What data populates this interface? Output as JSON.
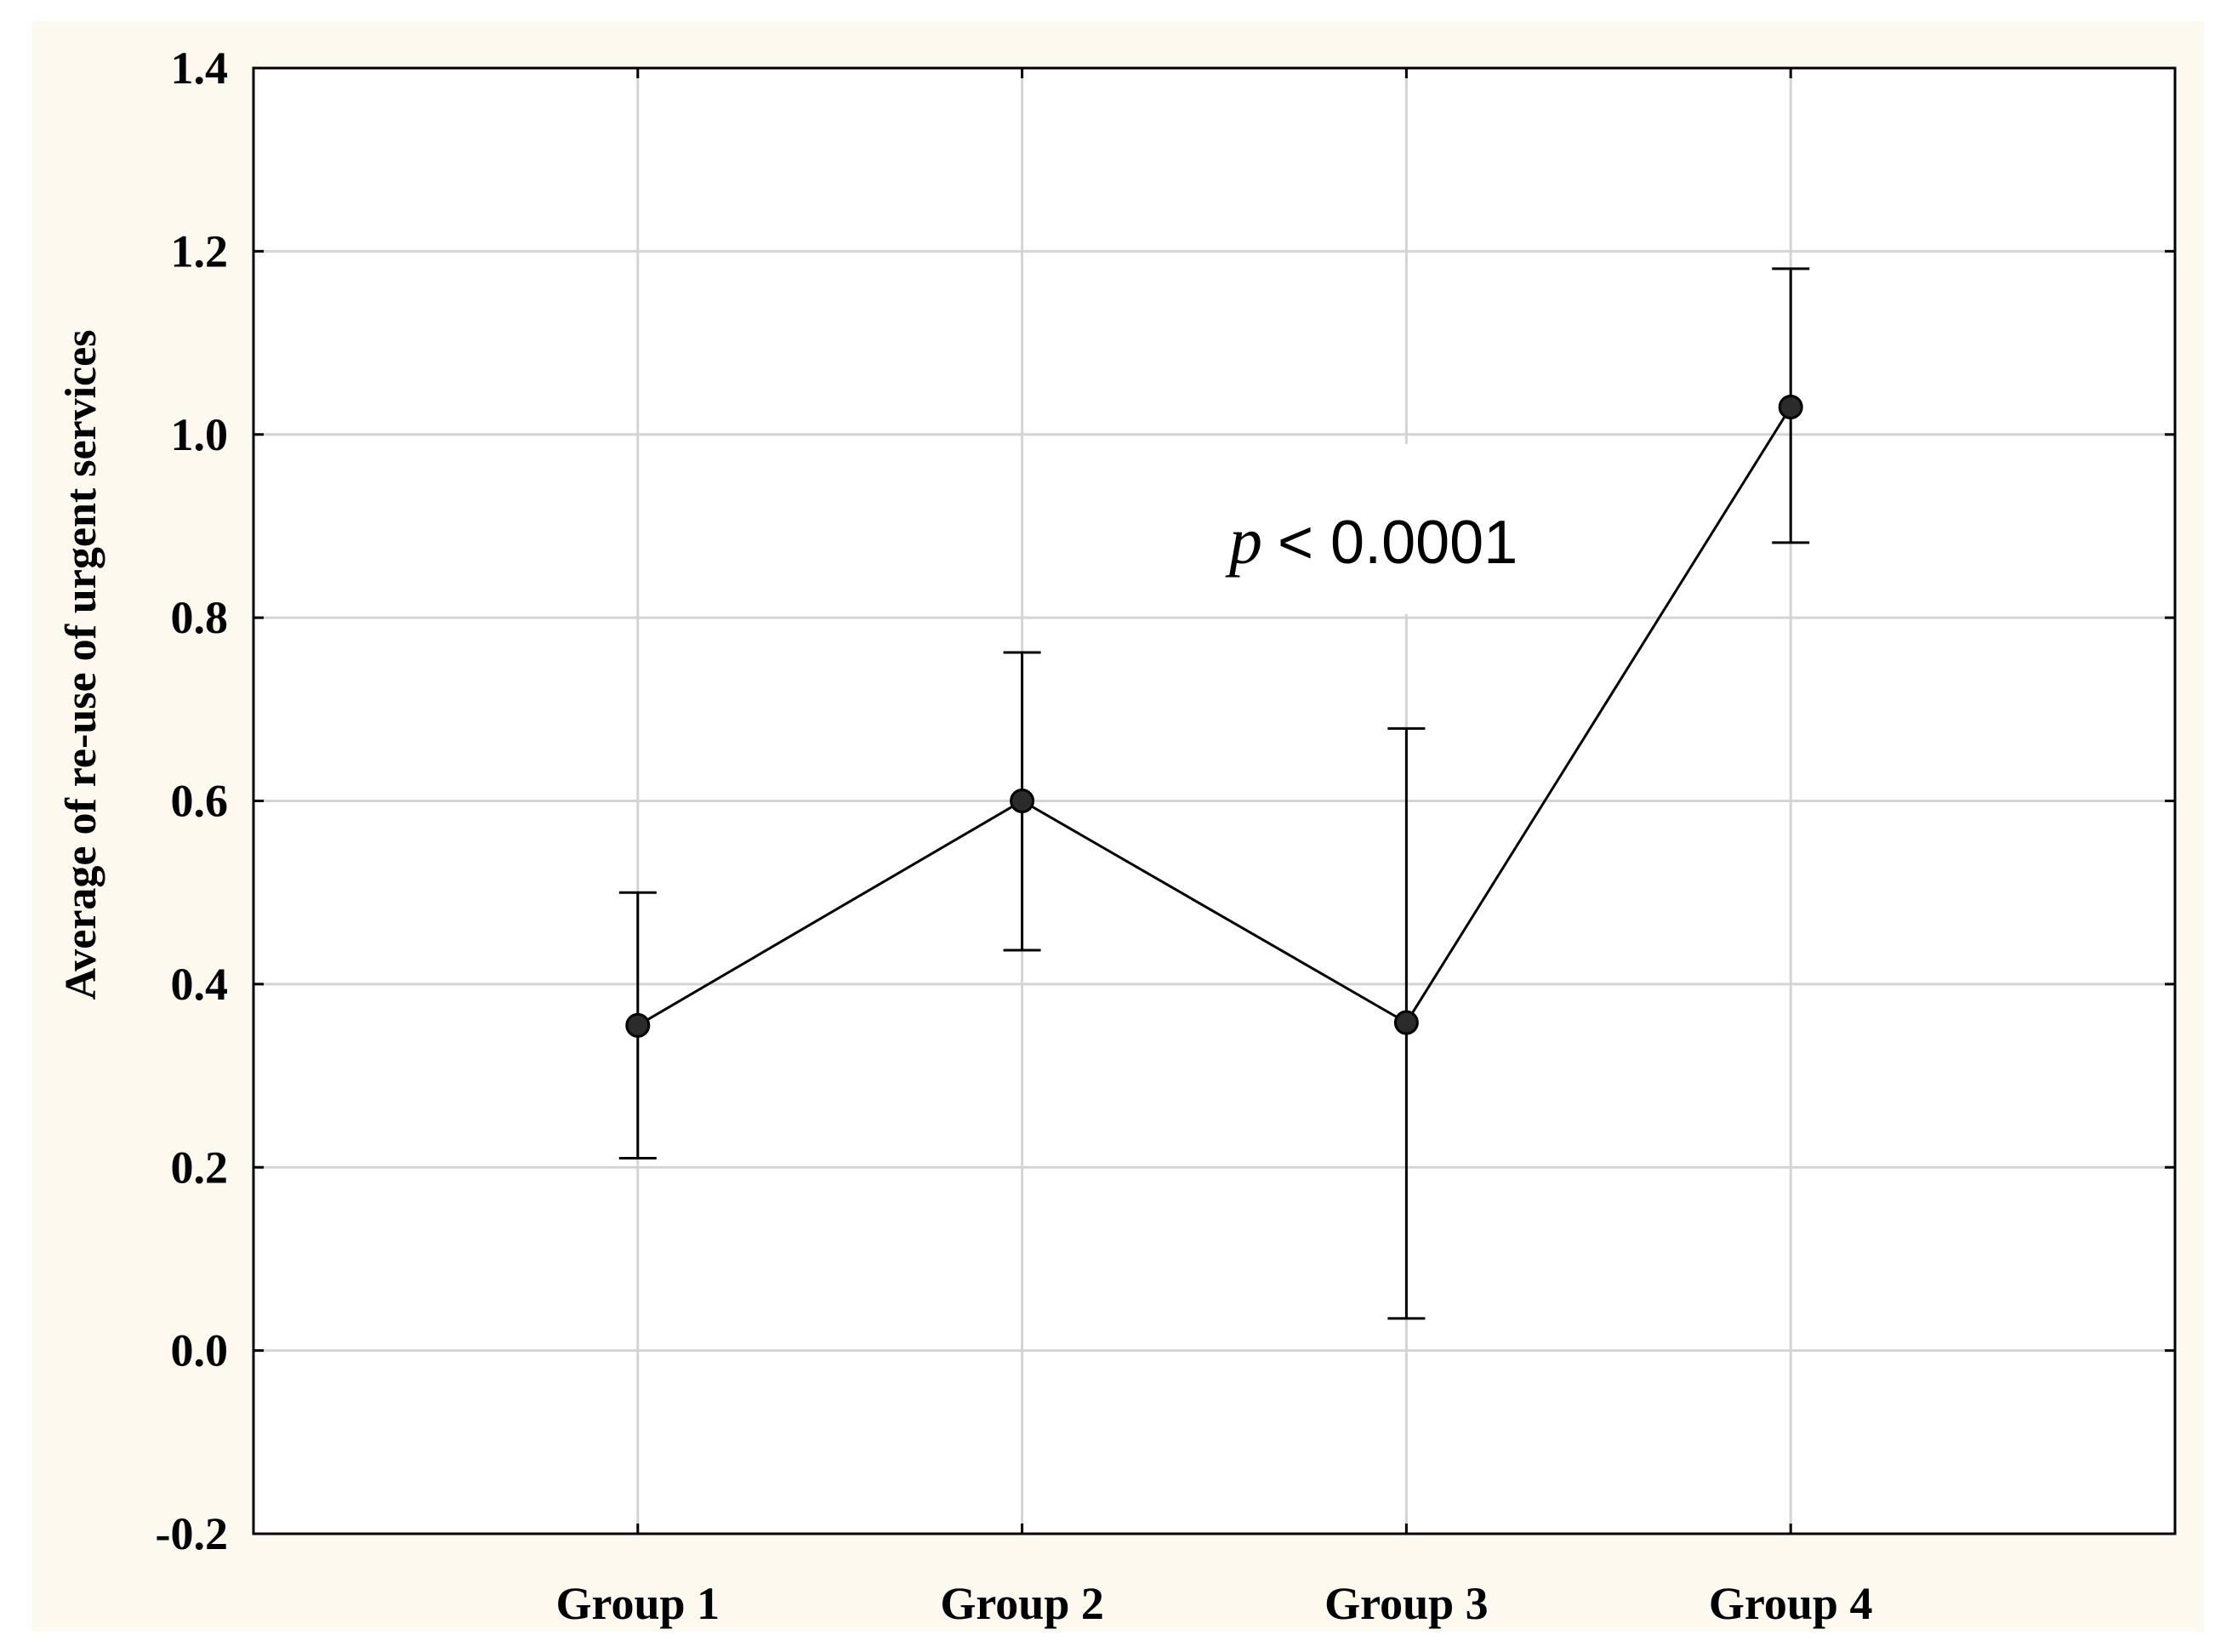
{
  "chart_data": {
    "type": "line",
    "title": "",
    "xlabel": "",
    "ylabel": "Average of re-use of urgent services",
    "categories": [
      "Group 1",
      "Group 2",
      "Group 3",
      "Group 4"
    ],
    "series": [
      {
        "values": [
          0.355,
          0.6,
          0.358,
          1.03
        ],
        "error_lower": [
          0.21,
          0.437,
          0.035,
          0.882
        ],
        "error_upper": [
          0.5,
          0.762,
          0.679,
          1.181
        ]
      }
    ],
    "ylim": [
      -0.2,
      1.4
    ],
    "yticks": [
      "1.4",
      "1.2",
      "1.0",
      "0.8",
      "0.6",
      "0.4",
      "0.2",
      "0.0",
      "-0.2"
    ],
    "grid": true,
    "annotation": {
      "p_symbol": "p",
      "text": "< 0.0001"
    },
    "colors": {
      "background": "#fdf9ef",
      "plot_background": "#ffffff",
      "grid": "#d4d4d4",
      "line": "#000000",
      "marker": "#2b2b2b"
    }
  }
}
